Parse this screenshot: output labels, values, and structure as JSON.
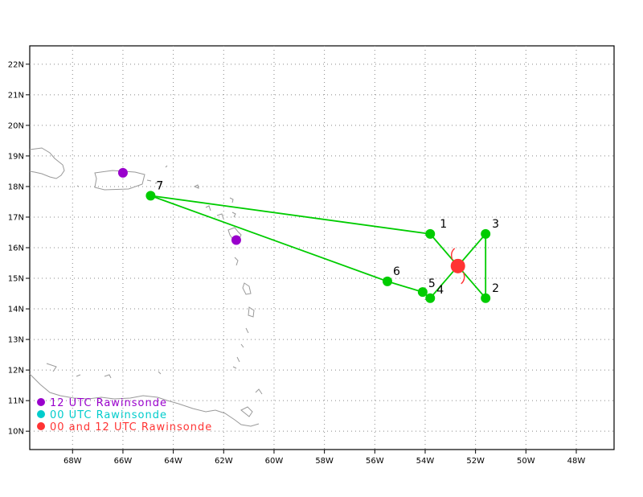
{
  "map": {
    "y_ticks": [
      "22N",
      "21N",
      "20N",
      "19N",
      "18N",
      "17N",
      "16N",
      "15N",
      "14N",
      "13N",
      "12N",
      "11N",
      "10N"
    ],
    "x_ticks": [
      "68W",
      "66W",
      "64W",
      "62W",
      "60W",
      "58W",
      "56W",
      "54W",
      "52W",
      "50W",
      "48W"
    ],
    "lon_range": [
      -69.7,
      -46.5
    ],
    "lat_range": [
      9.4,
      22.6
    ],
    "grid": "dotted",
    "flight_track": [
      {
        "label": "1",
        "lon": -53.8,
        "lat": 16.45
      },
      {
        "label": "3",
        "lon": -51.6,
        "lat": 16.45
      },
      {
        "label": "2",
        "lon": -51.6,
        "lat": 14.35
      },
      {
        "label": "4",
        "lon": -53.8,
        "lat": 14.35
      },
      {
        "label": "5",
        "lon": -54.1,
        "lat": 14.55
      },
      {
        "label": "6",
        "lon": -55.5,
        "lat": 14.9
      },
      {
        "label": "7",
        "lon": -64.9,
        "lat": 17.7
      }
    ],
    "track_color": "#00cc00",
    "storm_center": {
      "lon": -52.7,
      "lat": 15.4,
      "color": "#ff3333"
    },
    "rawinsonde_12utc": [
      {
        "lon": -66.0,
        "lat": 18.45
      },
      {
        "lon": -61.5,
        "lat": 16.25
      }
    ]
  },
  "legend": [
    {
      "label": "12 UTC Rawinsonde",
      "color": "#9900cc"
    },
    {
      "label": "00 UTC Rawinsonde",
      "color": "#00cccc"
    },
    {
      "label": "00 and 12 UTC Rawinsonde",
      "color": "#ff3333"
    }
  ]
}
